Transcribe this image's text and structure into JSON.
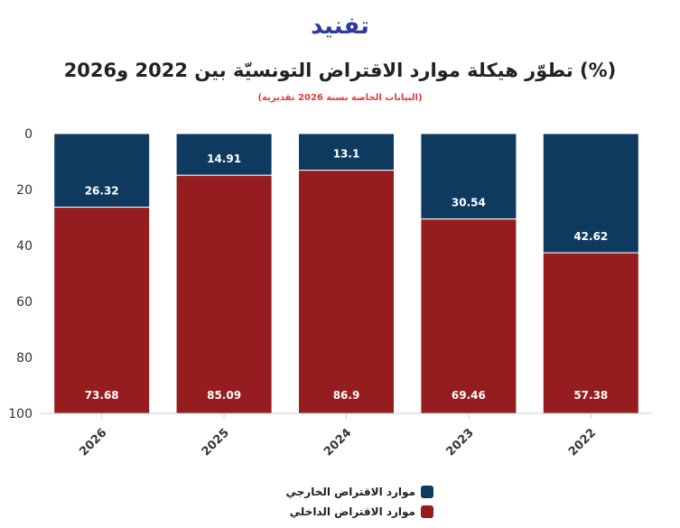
{
  "logo": "تفنيد",
  "chart_data": {
    "type": "bar",
    "stacked": true,
    "orientation": "vertical",
    "title": "تطوّر هيكلة موارد الاقتراض التونسيّة بين 2022 و2026 (%)",
    "subtitle": "(البيانات الخاصة بسنة 2026 تقديرية)",
    "categories": [
      "2026",
      "2025",
      "2024",
      "2023",
      "2022"
    ],
    "series": [
      {
        "name": "موارد الاقتراض الخارجي",
        "color": "#0f3a5f",
        "values": [
          26.32,
          14.91,
          13.1,
          30.54,
          42.62
        ]
      },
      {
        "name": "موارد الاقتراض الداخلي",
        "color": "#951c1f",
        "values": [
          73.68,
          85.09,
          86.9,
          69.46,
          57.38
        ]
      }
    ],
    "yaxis": {
      "ticks": [
        0,
        20,
        40,
        60,
        80,
        100
      ],
      "range": [
        0,
        100
      ],
      "reversed": true
    },
    "legend_position": "bottom-center",
    "grid": false
  }
}
